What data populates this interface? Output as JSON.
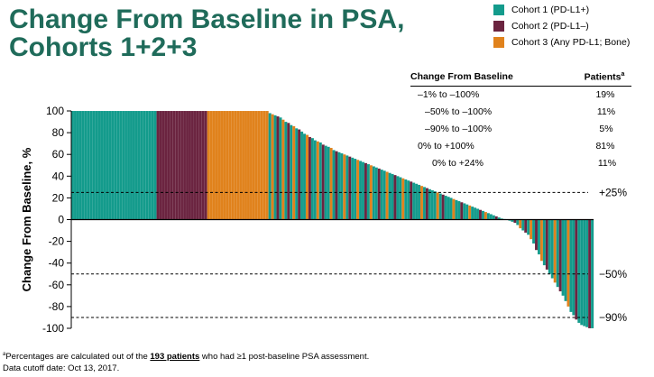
{
  "title": {
    "line1": "Change From Baseline in PSA,",
    "line2": "Cohorts 1+2+3"
  },
  "legend": [
    {
      "label": "Cohort 1 (PD-L1+)",
      "color": "#139b8c"
    },
    {
      "label": "Cohort 2 (PD-L1–)",
      "color": "#6b2440"
    },
    {
      "label": "Cohort 3 (Any PD-L1; Bone)",
      "color": "#e0821c"
    }
  ],
  "patient_table": {
    "header_col1": "Change From Baseline",
    "header_col2": "Patients",
    "header_col2_sup": "a",
    "rows": [
      {
        "label": "–1% to –100%",
        "value": "19%"
      },
      {
        "label": "–50% to –100%",
        "value": "11%"
      },
      {
        "label": "–90% to –100%",
        "value": "5%"
      },
      {
        "label": "0% to +100%",
        "value": "81%"
      },
      {
        "label": "0% to +24%",
        "value": "11%"
      }
    ]
  },
  "footnote": {
    "sup": "a",
    "text_before": "Percentages are calculated out of the ",
    "bold": "193 patients",
    "text_after": " who had ≥1 post-baseline PSA assessment.",
    "line2": "Data cutoff date: Oct 13, 2017."
  },
  "chart_data": {
    "type": "bar",
    "ylabel": "Change From  Baseline, %",
    "ylim": [
      -100,
      100
    ],
    "yticks": [
      100,
      80,
      60,
      40,
      20,
      0,
      -20,
      -40,
      -60,
      -80,
      -100
    ],
    "reference_lines": [
      {
        "value": 25,
        "label": "+25%"
      },
      {
        "value": -50,
        "label": "−50%"
      },
      {
        "value": -90,
        "label": "−90%"
      }
    ],
    "cohort_colors": {
      "1": "#139b8c",
      "2": "#6b2440",
      "3": "#e0821c"
    },
    "cohort_runs": [
      {
        "cohort": 1,
        "count": 32,
        "value": 100
      },
      {
        "cohort": 2,
        "count": 19,
        "value": 100
      },
      {
        "cohort": 3,
        "count": 23,
        "value": 100
      }
    ],
    "bars": [
      [
        1,
        98
      ],
      [
        3,
        97
      ],
      [
        1,
        96
      ],
      [
        2,
        95
      ],
      [
        1,
        94
      ],
      [
        3,
        92
      ],
      [
        1,
        90
      ],
      [
        2,
        89
      ],
      [
        1,
        87
      ],
      [
        3,
        86
      ],
      [
        1,
        84
      ],
      [
        2,
        83
      ],
      [
        1,
        81
      ],
      [
        1,
        79
      ],
      [
        3,
        78
      ],
      [
        2,
        76
      ],
      [
        1,
        75
      ],
      [
        1,
        73
      ],
      [
        3,
        72
      ],
      [
        1,
        71
      ],
      [
        2,
        69
      ],
      [
        1,
        68
      ],
      [
        1,
        67
      ],
      [
        3,
        66
      ],
      [
        1,
        64
      ],
      [
        2,
        63
      ],
      [
        1,
        62
      ],
      [
        1,
        61
      ],
      [
        3,
        60
      ],
      [
        1,
        59
      ],
      [
        2,
        58
      ],
      [
        1,
        57
      ],
      [
        1,
        56
      ],
      [
        3,
        55
      ],
      [
        1,
        54
      ],
      [
        1,
        53
      ],
      [
        2,
        52
      ],
      [
        1,
        51
      ],
      [
        3,
        50
      ],
      [
        1,
        49
      ],
      [
        1,
        48
      ],
      [
        2,
        47
      ],
      [
        1,
        46
      ],
      [
        1,
        45
      ],
      [
        3,
        44
      ],
      [
        1,
        43
      ],
      [
        1,
        42
      ],
      [
        2,
        41
      ],
      [
        1,
        40
      ],
      [
        1,
        39
      ],
      [
        3,
        38
      ],
      [
        1,
        37
      ],
      [
        1,
        36
      ],
      [
        2,
        35
      ],
      [
        1,
        34
      ],
      [
        1,
        33
      ],
      [
        1,
        32
      ],
      [
        3,
        31
      ],
      [
        1,
        30
      ],
      [
        2,
        29
      ],
      [
        1,
        28
      ],
      [
        1,
        27
      ],
      [
        1,
        26
      ],
      [
        3,
        25
      ],
      [
        1,
        24
      ],
      [
        2,
        23
      ],
      [
        1,
        22
      ],
      [
        1,
        21
      ],
      [
        1,
        20
      ],
      [
        3,
        19
      ],
      [
        1,
        18
      ],
      [
        1,
        17
      ],
      [
        2,
        16
      ],
      [
        1,
        15
      ],
      [
        1,
        14
      ],
      [
        3,
        13
      ],
      [
        1,
        12
      ],
      [
        1,
        11
      ],
      [
        1,
        10
      ],
      [
        2,
        9
      ],
      [
        1,
        8
      ],
      [
        3,
        7
      ],
      [
        1,
        6
      ],
      [
        1,
        5
      ],
      [
        1,
        4
      ],
      [
        2,
        3
      ],
      [
        1,
        2
      ],
      [
        1,
        1
      ],
      [
        1,
        0.5
      ],
      [
        3,
        0.3
      ],
      [
        1,
        -1
      ],
      [
        1,
        -2
      ],
      [
        2,
        -3
      ],
      [
        1,
        -5
      ],
      [
        3,
        -8
      ],
      [
        1,
        -10
      ],
      [
        2,
        -12
      ],
      [
        1,
        -14
      ],
      [
        3,
        -18
      ],
      [
        1,
        -22
      ],
      [
        2,
        -28
      ],
      [
        1,
        -32
      ],
      [
        3,
        -38
      ],
      [
        1,
        -42
      ],
      [
        2,
        -46
      ],
      [
        1,
        -50
      ],
      [
        1,
        -54
      ],
      [
        3,
        -58
      ],
      [
        1,
        -62
      ],
      [
        2,
        -66
      ],
      [
        1,
        -70
      ],
      [
        1,
        -75
      ],
      [
        3,
        -80
      ],
      [
        1,
        -85
      ],
      [
        1,
        -88
      ],
      [
        2,
        -92
      ],
      [
        1,
        -95
      ],
      [
        1,
        -97
      ],
      [
        1,
        -98
      ],
      [
        1,
        -99
      ],
      [
        2,
        -100
      ],
      [
        1,
        -100
      ]
    ]
  }
}
